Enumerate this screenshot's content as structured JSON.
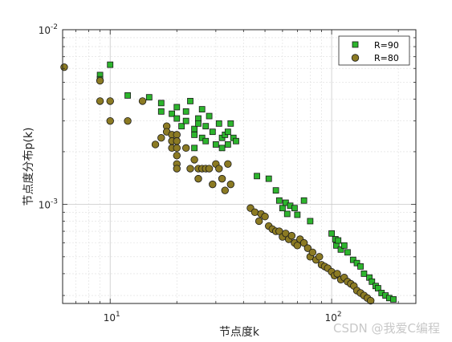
{
  "chart_data": {
    "type": "scatter",
    "title": "",
    "xlabel": "节点度k",
    "ylabel": "节点度分布p(k)",
    "x_scale": "log",
    "y_scale": "log",
    "xlim": [
      6.1,
      240
    ],
    "ylim": [
      0.00027,
      0.01
    ],
    "x_ticks": [
      {
        "value": 10,
        "base": "10",
        "exp": "1"
      },
      {
        "value": 100,
        "base": "10",
        "exp": "2"
      }
    ],
    "y_ticks": [
      {
        "value": 0.01,
        "base": "10",
        "exp": "-2"
      },
      {
        "value": 0.001,
        "base": "10",
        "exp": "-3"
      }
    ],
    "grid": true,
    "legend_position": "top-right",
    "series": [
      {
        "name": "R=90",
        "marker": "square",
        "color": "#2db52d",
        "edge_color": "#1a1a1a",
        "points": [
          [
            9,
            0.0055
          ],
          [
            9,
            0.0052
          ],
          [
            10,
            0.0063
          ],
          [
            12,
            0.0042
          ],
          [
            15,
            0.0041
          ],
          [
            17,
            0.0038
          ],
          [
            17,
            0.0034
          ],
          [
            19,
            0.0033
          ],
          [
            20,
            0.0036
          ],
          [
            20,
            0.0031
          ],
          [
            21,
            0.0028
          ],
          [
            22,
            0.0034
          ],
          [
            22,
            0.003
          ],
          [
            23,
            0.0039
          ],
          [
            24,
            0.0027
          ],
          [
            24,
            0.0025
          ],
          [
            24,
            0.0021
          ],
          [
            25,
            0.0031
          ],
          [
            25,
            0.0029
          ],
          [
            26,
            0.0035
          ],
          [
            26,
            0.0024
          ],
          [
            27,
            0.0028
          ],
          [
            27,
            0.0023
          ],
          [
            28,
            0.0032
          ],
          [
            29,
            0.0026
          ],
          [
            30,
            0.0022
          ],
          [
            31,
            0.0029
          ],
          [
            32,
            0.0024
          ],
          [
            32,
            0.0021
          ],
          [
            33,
            0.0025
          ],
          [
            34,
            0.0026
          ],
          [
            34,
            0.0022
          ],
          [
            35,
            0.0029
          ],
          [
            36,
            0.0024
          ],
          [
            37,
            0.0023
          ],
          [
            46,
            0.00145
          ],
          [
            52,
            0.0014
          ],
          [
            56,
            0.0012
          ],
          [
            58,
            0.00105
          ],
          [
            60,
            0.00095
          ],
          [
            62,
            0.00102
          ],
          [
            63,
            0.00088
          ],
          [
            65,
            0.00098
          ],
          [
            68,
            0.00095
          ],
          [
            70,
            0.00087
          ],
          [
            75,
            0.00105
          ],
          [
            80,
            0.0008
          ],
          [
            100,
            0.00068
          ],
          [
            104,
            0.00063
          ],
          [
            105,
            0.00058
          ],
          [
            107,
            0.00062
          ],
          [
            110,
            0.00055
          ],
          [
            114,
            0.00058
          ],
          [
            118,
            0.00053
          ],
          [
            125,
            0.00048
          ],
          [
            130,
            0.00046
          ],
          [
            135,
            0.00044
          ],
          [
            140,
            0.0004
          ],
          [
            148,
            0.00038
          ],
          [
            152,
            0.00036
          ],
          [
            158,
            0.00034
          ],
          [
            162,
            0.00033
          ],
          [
            168,
            0.00031
          ],
          [
            175,
            0.0003
          ],
          [
            182,
            0.00029
          ],
          [
            190,
            0.000285
          ]
        ]
      },
      {
        "name": "R=80",
        "marker": "circle",
        "color": "#8b7a23",
        "edge_color": "#1a1a1a",
        "points": [
          [
            6.2,
            0.0061
          ],
          [
            9,
            0.0051
          ],
          [
            9,
            0.0039
          ],
          [
            10,
            0.0039
          ],
          [
            10,
            0.003
          ],
          [
            12,
            0.003
          ],
          [
            14,
            0.0039
          ],
          [
            16,
            0.0022
          ],
          [
            17,
            0.0024
          ],
          [
            18,
            0.0028
          ],
          [
            18,
            0.0026
          ],
          [
            19,
            0.0025
          ],
          [
            19,
            0.0023
          ],
          [
            19,
            0.0021
          ],
          [
            20,
            0.0025
          ],
          [
            20,
            0.0023
          ],
          [
            20,
            0.0021
          ],
          [
            20,
            0.0019
          ],
          [
            20,
            0.0017
          ],
          [
            20,
            0.0016
          ],
          [
            22,
            0.0021
          ],
          [
            23,
            0.0016
          ],
          [
            24,
            0.0018
          ],
          [
            25,
            0.0016
          ],
          [
            25,
            0.0014
          ],
          [
            26,
            0.0016
          ],
          [
            27,
            0.0016
          ],
          [
            28,
            0.0016
          ],
          [
            29,
            0.0013
          ],
          [
            30,
            0.0017
          ],
          [
            31,
            0.0016
          ],
          [
            32,
            0.0014
          ],
          [
            33,
            0.0012
          ],
          [
            34,
            0.0017
          ],
          [
            35,
            0.0013
          ],
          [
            43,
            0.00095
          ],
          [
            45,
            0.0009
          ],
          [
            47,
            0.0008
          ],
          [
            48,
            0.00088
          ],
          [
            50,
            0.00085
          ],
          [
            52,
            0.00075
          ],
          [
            54,
            0.00072
          ],
          [
            56,
            0.0007
          ],
          [
            58,
            0.0007
          ],
          [
            60,
            0.00065
          ],
          [
            62,
            0.00068
          ],
          [
            64,
            0.00063
          ],
          [
            66,
            0.00066
          ],
          [
            68,
            0.0006
          ],
          [
            70,
            0.00058
          ],
          [
            72,
            0.00063
          ],
          [
            75,
            0.0006
          ],
          [
            78,
            0.00056
          ],
          [
            80,
            0.0005
          ],
          [
            82,
            0.00053
          ],
          [
            85,
            0.00048
          ],
          [
            88,
            0.0005
          ],
          [
            90,
            0.00045
          ],
          [
            93,
            0.00044
          ],
          [
            96,
            0.00043
          ],
          [
            100,
            0.00041
          ],
          [
            103,
            0.00039
          ],
          [
            106,
            0.0004
          ],
          [
            110,
            0.00037
          ],
          [
            114,
            0.00038
          ],
          [
            118,
            0.00036
          ],
          [
            122,
            0.00035
          ],
          [
            126,
            0.00034
          ],
          [
            130,
            0.00032
          ],
          [
            135,
            0.00031
          ],
          [
            140,
            0.0003
          ],
          [
            145,
            0.00029
          ],
          [
            150,
            0.00028
          ]
        ]
      }
    ]
  },
  "watermark": "CSDN @我爱C编程"
}
